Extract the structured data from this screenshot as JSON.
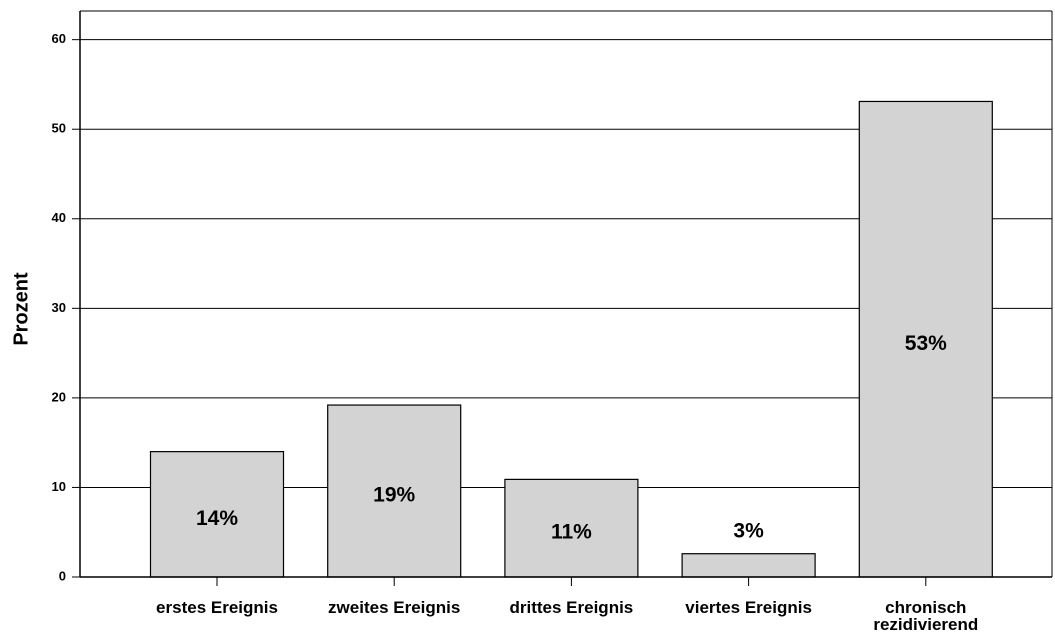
{
  "chart_data": {
    "type": "bar",
    "y_label": "Prozent",
    "categories": [
      "erstes Ereignis",
      "zweites Ereignis",
      "drittes Ereignis",
      "viertes Ereignis",
      "chronisch\nrezidivierend"
    ],
    "values": [
      14,
      19.2,
      10.9,
      2.6,
      53.1
    ],
    "value_labels": [
      "14%",
      "19%",
      "11%",
      "3%",
      "53%"
    ],
    "color": "#d3d3d3",
    "ylim": [
      0,
      63.2
    ],
    "yticks": [
      0,
      10,
      20,
      30,
      40,
      50,
      60
    ],
    "grid": true
  }
}
